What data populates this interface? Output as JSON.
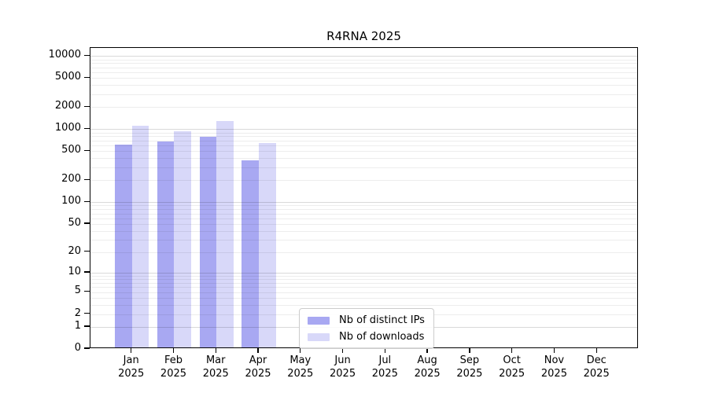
{
  "chart_data": {
    "type": "bar",
    "title": "R4RNA 2025",
    "months": [
      "Jan",
      "Feb",
      "Mar",
      "Apr",
      "May",
      "Jun",
      "Jul",
      "Aug",
      "Sep",
      "Oct",
      "Nov",
      "Dec"
    ],
    "year": "2025",
    "series": [
      {
        "name": "Nb of distinct IPs",
        "color": "#a8a8f2",
        "values": [
          580,
          640,
          760,
          360,
          0,
          0,
          0,
          0,
          0,
          0,
          0,
          0
        ]
      },
      {
        "name": "Nb of downloads",
        "color": "#d8d8f9",
        "values": [
          1070,
          900,
          1220,
          610,
          0,
          0,
          0,
          0,
          0,
          0,
          0,
          0
        ]
      }
    ],
    "yticks": [
      0,
      1,
      2,
      5,
      10,
      20,
      50,
      100,
      200,
      500,
      1000,
      2000,
      5000,
      10000
    ],
    "yscale": "log1p",
    "ylim": [
      0,
      12880
    ],
    "grid": {
      "major_color": "#00000026",
      "minor_color": "#00000012"
    },
    "legend": {
      "position": "lower center"
    }
  }
}
